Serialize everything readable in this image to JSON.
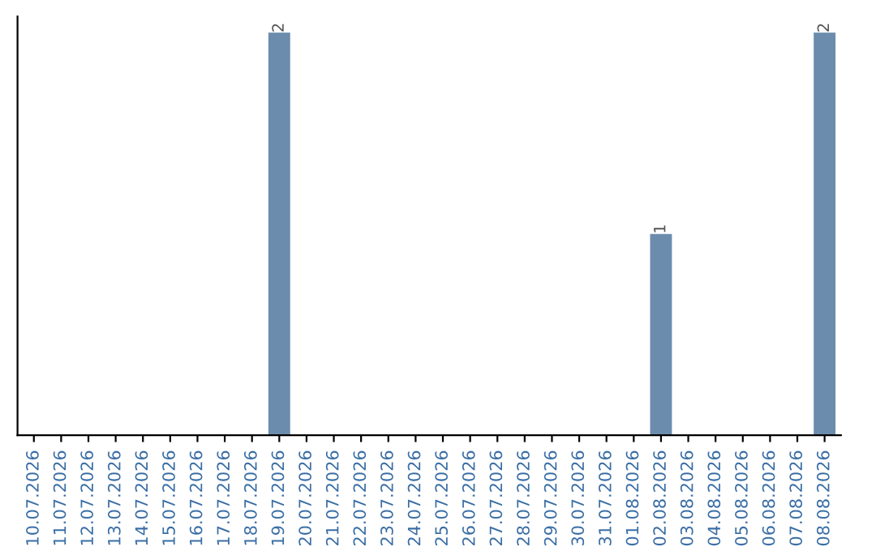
{
  "chart_data": {
    "type": "bar",
    "categories": [
      "10.07.2026",
      "11.07.2026",
      "12.07.2026",
      "13.07.2026",
      "14.07.2026",
      "15.07.2026",
      "16.07.2026",
      "17.07.2026",
      "18.07.2026",
      "19.07.2026",
      "20.07.2026",
      "21.07.2026",
      "22.07.2026",
      "23.07.2026",
      "24.07.2026",
      "25.07.2026",
      "26.07.2026",
      "27.07.2026",
      "28.07.2026",
      "29.07.2026",
      "30.07.2026",
      "31.07.2026",
      "01.08.2026",
      "02.08.2026",
      "03.08.2026",
      "04.08.2026",
      "05.08.2026",
      "06.08.2026",
      "07.08.2026",
      "08.08.2026"
    ],
    "values": [
      0,
      0,
      0,
      0,
      0,
      0,
      0,
      0,
      0,
      2,
      0,
      0,
      0,
      0,
      0,
      0,
      0,
      0,
      0,
      0,
      0,
      0,
      0,
      1,
      0,
      0,
      0,
      0,
      0,
      2
    ],
    "value_labels": [
      null,
      null,
      null,
      null,
      null,
      null,
      null,
      null,
      null,
      "2",
      null,
      null,
      null,
      null,
      null,
      null,
      null,
      null,
      null,
      null,
      null,
      null,
      null,
      "1",
      null,
      null,
      null,
      null,
      null,
      "2"
    ],
    "color": "#6b8cad",
    "grid": false,
    "legend": false,
    "tick_labels": "x"
  }
}
